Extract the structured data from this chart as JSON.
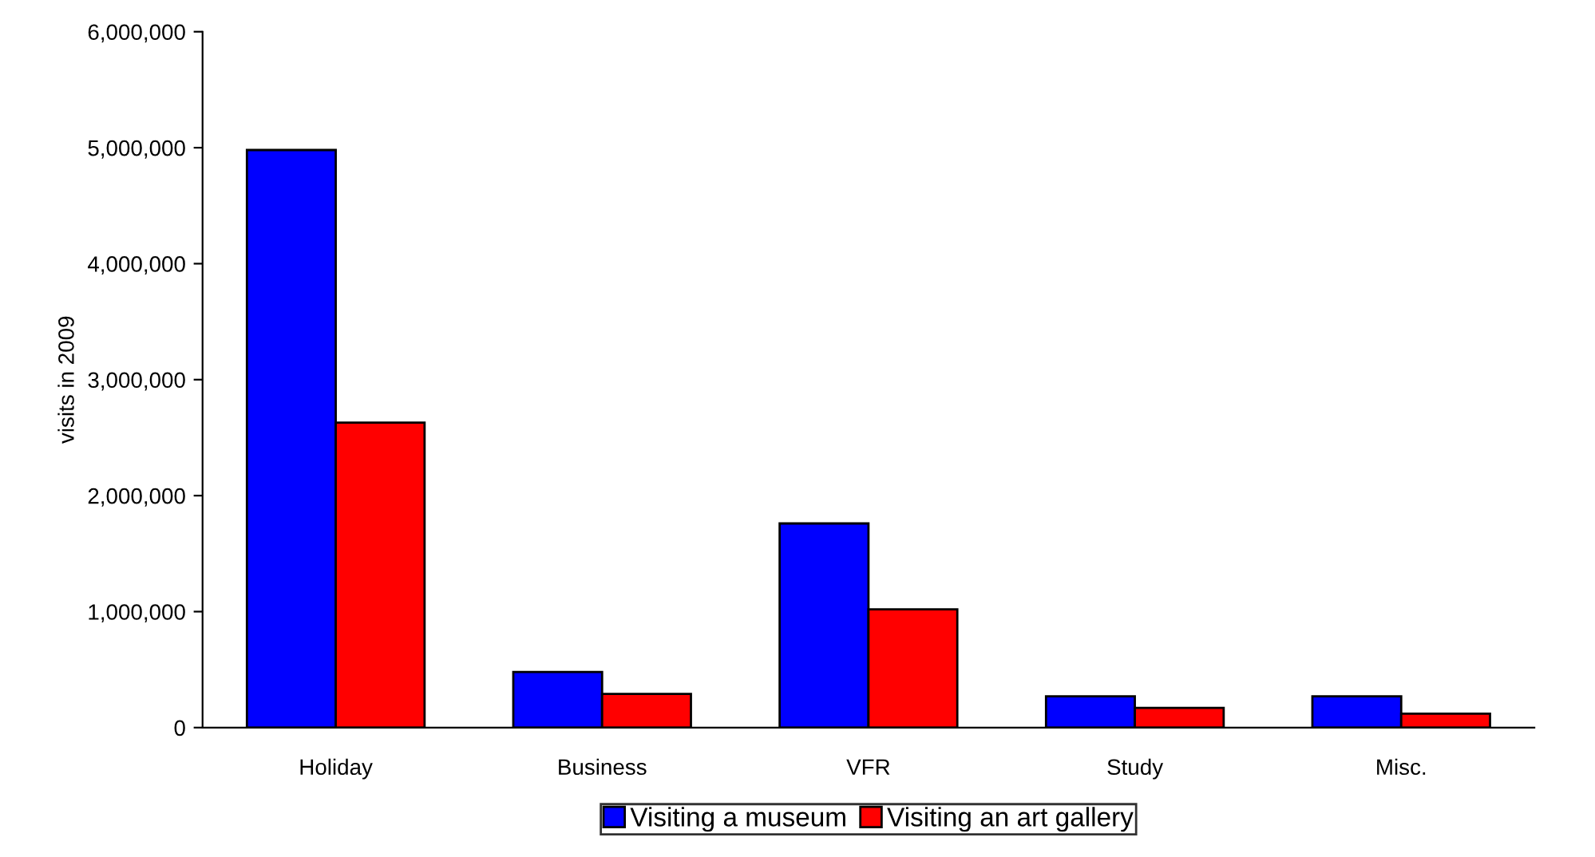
{
  "chart_data": {
    "type": "bar",
    "ylabel": "visits in 2009",
    "categories": [
      "Holiday",
      "Business",
      "VFR",
      "Study",
      "Misc."
    ],
    "series": [
      {
        "name": "Visiting a museum",
        "color": "#0000ff",
        "values": [
          4980000,
          480000,
          1760000,
          270000,
          270000
        ]
      },
      {
        "name": "Visiting an art gallery",
        "color": "#ff0000",
        "values": [
          2630000,
          290000,
          1020000,
          170000,
          120000
        ]
      }
    ],
    "ylim": [
      0,
      6000000
    ],
    "yticks": [
      {
        "value": 0,
        "label": "0"
      },
      {
        "value": 1000000,
        "label": "1,000,000"
      },
      {
        "value": 2000000,
        "label": "2,000,000"
      },
      {
        "value": 3000000,
        "label": "3,000,000"
      },
      {
        "value": 4000000,
        "label": "4,000,000"
      },
      {
        "value": 5000000,
        "label": "5,000,000"
      },
      {
        "value": 6000000,
        "label": "6,000,000"
      }
    ],
    "grid": false,
    "legend": "bottom"
  }
}
